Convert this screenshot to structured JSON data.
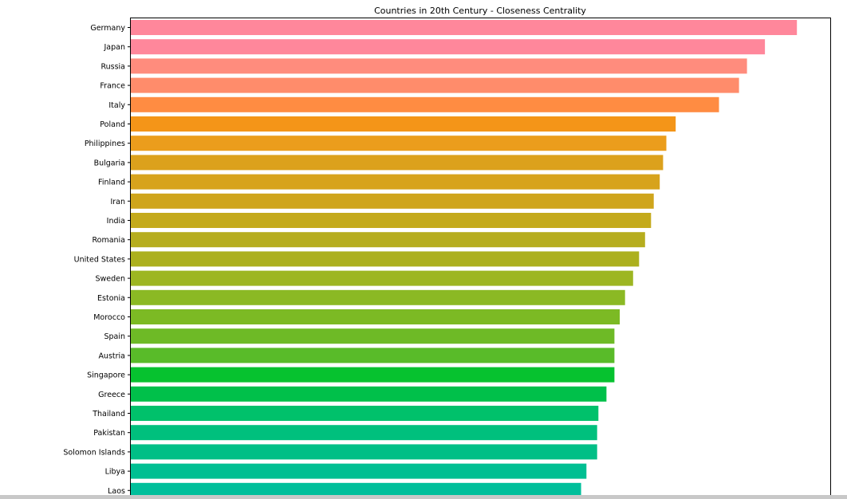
{
  "chart_data": {
    "type": "bar",
    "orientation": "horizontal",
    "title": "Countries in 20th Century - Closeness Centrality",
    "xlabel": "",
    "ylabel": "",
    "xlim": [
      0,
      1.05
    ],
    "grid": false,
    "categories": [
      "Germany",
      "Japan",
      "Russia",
      "France",
      "Italy",
      "Poland",
      "Philippines",
      "Bulgaria",
      "Finland",
      "Iran",
      "India",
      "Romania",
      "United States",
      "Sweden",
      "Estonia",
      "Morocco",
      "Spain",
      "Austria",
      "Singapore",
      "Greece",
      "Thailand",
      "Pakistan",
      "Solomon Islands",
      "Libya",
      "Laos"
    ],
    "values": [
      1.0,
      0.952,
      0.925,
      0.913,
      0.883,
      0.818,
      0.804,
      0.799,
      0.794,
      0.785,
      0.781,
      0.772,
      0.763,
      0.754,
      0.742,
      0.734,
      0.726,
      0.726,
      0.726,
      0.714,
      0.702,
      0.7,
      0.7,
      0.684,
      0.676
    ],
    "colors": [
      "#ff879b",
      "#ff879b",
      "#ff8c7d",
      "#ff8c6b",
      "#ff8c42",
      "#f49518",
      "#eb9d1c",
      "#dca11c",
      "#d7a31c",
      "#cfa51c",
      "#c4aa1c",
      "#b6ad1e",
      "#acb01e",
      "#9db622",
      "#8bb924",
      "#7cba24",
      "#6eba26",
      "#59bb29",
      "#06c22f",
      "#00c04a",
      "#00c16b",
      "#00c07d",
      "#00bf86",
      "#00bf92",
      "#00bf9b"
    ]
  }
}
